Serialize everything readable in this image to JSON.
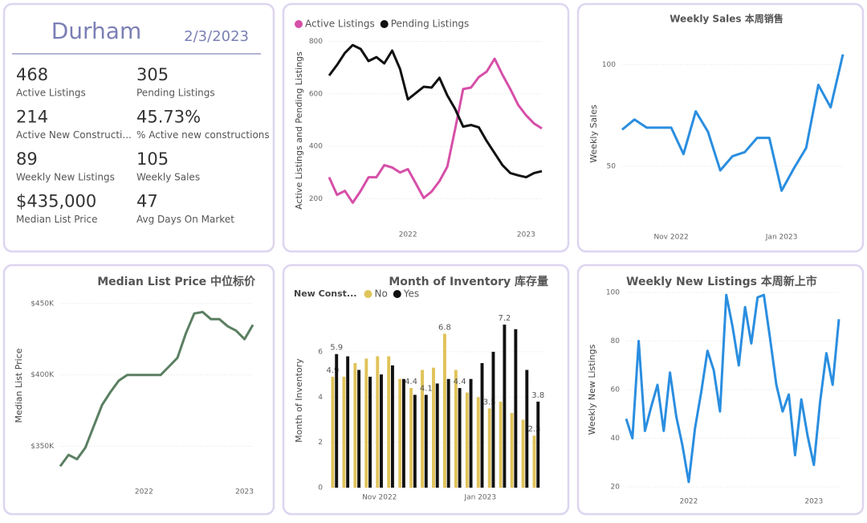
{
  "kpi": {
    "title": "Durham",
    "date": "2/3/2023",
    "items": [
      {
        "value": "468",
        "label": "Active Listings"
      },
      {
        "value": "305",
        "label": "Pending Listings"
      },
      {
        "value": "214",
        "label": "Active New Constructi..."
      },
      {
        "value": "45.73%",
        "label": "% Active new constructions"
      },
      {
        "value": "89",
        "label": "Weekly New Listings"
      },
      {
        "value": "105",
        "label": "Weekly Sales"
      },
      {
        "value": "$435,000",
        "label": "Median List Price"
      },
      {
        "value": "47",
        "label": "Avg Days On Market"
      }
    ]
  },
  "chart_data": [
    {
      "type": "line",
      "y_label": "Active Listings and Pending Listings",
      "legend": "top-left",
      "categories": [
        null,
        null,
        null,
        null,
        null,
        null,
        null,
        null,
        null,
        null,
        "2022",
        null,
        null,
        null,
        null,
        null,
        null,
        null,
        null,
        null,
        null,
        null,
        null,
        null,
        null,
        "2023",
        null,
        null
      ],
      "series": [
        {
          "name": "Active Listings",
          "color": "#d64fa8",
          "values": [
            282,
            215,
            230,
            185,
            230,
            282,
            282,
            328,
            319,
            300,
            313,
            258,
            203,
            227,
            267,
            322,
            466,
            618,
            624,
            664,
            685,
            734,
            673,
            618,
            557,
            518,
            487,
            468
          ]
        },
        {
          "name": "Pending Listings",
          "color": "#111111",
          "values": [
            670,
            710,
            756,
            786,
            771,
            725,
            740,
            716,
            765,
            695,
            579,
            603,
            627,
            624,
            661,
            594,
            542,
            475,
            481,
            472,
            420,
            374,
            328,
            298,
            289,
            282,
            298,
            305
          ]
        }
      ],
      "ylim": [
        100,
        820
      ],
      "yticks": [
        200,
        400,
        600,
        800
      ],
      "grid": true
    },
    {
      "type": "line",
      "title": "Weekly Sales 本周销售",
      "y_label": "Weekly Sales",
      "color": "#2a8ee0",
      "categories": [
        null,
        null,
        null,
        null,
        "Nov 2022",
        null,
        null,
        null,
        null,
        null,
        null,
        null,
        null,
        "Jan 2023",
        null,
        null,
        null,
        null,
        null
      ],
      "values": [
        68,
        73,
        69,
        69,
        69,
        56,
        77,
        67,
        48,
        55,
        57,
        64,
        64,
        38,
        49,
        59,
        90,
        79,
        105
      ],
      "ylim": [
        20,
        112
      ],
      "yticks": [
        50,
        100
      ],
      "grid": true
    },
    {
      "type": "line",
      "title": "Median List Price  中位标价",
      "y_label": "Median List Price",
      "color": "#5b7f62",
      "categories": [
        null,
        null,
        null,
        null,
        null,
        null,
        null,
        null,
        null,
        null,
        "2022",
        null,
        null,
        null,
        null,
        null,
        null,
        null,
        null,
        null,
        null,
        null,
        "2023",
        null
      ],
      "values": [
        336000,
        344000,
        341000,
        349000,
        364000,
        379000,
        388000,
        396000,
        400000,
        400000,
        400000,
        400000,
        400000,
        406000,
        412000,
        429000,
        443000,
        444000,
        439000,
        439000,
        434000,
        431000,
        425000,
        435000
      ],
      "ylim": [
        325000,
        460000
      ],
      "yticks": [
        {
          "value": 350000,
          "label": "$350K"
        },
        {
          "value": 400000,
          "label": "$400K"
        },
        {
          "value": 450000,
          "label": "$450K"
        }
      ],
      "grid": true
    },
    {
      "type": "bar",
      "title": "Month of Inventory 库存量",
      "legend_title": "New Const...",
      "y_label": "Month of Inventory",
      "legend": "top-left",
      "categories": [
        null,
        null,
        null,
        null,
        "Nov 2022",
        null,
        null,
        null,
        null,
        null,
        null,
        null,
        null,
        "Jan 2023",
        null,
        null,
        null,
        null,
        null
      ],
      "series": [
        {
          "name": "No",
          "color": "#e0c35a",
          "values": [
            4.9,
            4.9,
            5.5,
            5.7,
            5.8,
            5.8,
            4.8,
            4.4,
            5.2,
            5.3,
            6.8,
            5.2,
            4.2,
            4.0,
            3.5,
            3.8,
            3.3,
            3.0,
            2.3
          ],
          "value_labels": [
            "4.9",
            null,
            null,
            null,
            null,
            null,
            null,
            "4.4",
            null,
            null,
            "6.8",
            null,
            null,
            null,
            "3.5",
            null,
            null,
            null,
            "2.3"
          ]
        },
        {
          "name": "Yes",
          "color": "#111111",
          "values": [
            5.9,
            5.8,
            5.2,
            4.9,
            5.0,
            5.4,
            4.8,
            4.1,
            4.1,
            4.6,
            4.8,
            4.4,
            4.8,
            5.5,
            6.0,
            7.2,
            7.0,
            5.2,
            3.8
          ],
          "value_labels": [
            "5.9",
            null,
            null,
            null,
            null,
            null,
            null,
            null,
            "4.1",
            null,
            null,
            "4.4",
            null,
            null,
            null,
            "7.2",
            null,
            null,
            "3.8"
          ]
        }
      ],
      "ylim": [
        0,
        7.7
      ],
      "yticks": [
        0,
        2,
        4,
        6
      ],
      "grid": true
    },
    {
      "type": "line",
      "title": "Weekly New Listings  本周新上市",
      "y_label": "Weekly New Listings",
      "color": "#2a8ee0",
      "categories": [
        null,
        null,
        null,
        null,
        null,
        null,
        null,
        null,
        null,
        null,
        "2022",
        null,
        null,
        null,
        null,
        null,
        null,
        null,
        null,
        null,
        null,
        null,
        null,
        null,
        null,
        null,
        null,
        null,
        null,
        null,
        "2023",
        null,
        null,
        null,
        null
      ],
      "values": [
        48,
        40,
        80,
        43,
        53,
        62,
        43,
        67,
        49,
        37,
        22,
        44,
        59,
        76,
        68,
        51,
        99,
        86,
        70,
        94,
        79,
        98,
        99,
        81,
        62,
        51,
        58,
        33,
        56,
        41,
        29,
        55,
        75,
        62,
        89
      ],
      "ylim": [
        18,
        102
      ],
      "yticks": [
        20,
        40,
        60,
        80,
        100
      ],
      "grid": true
    }
  ]
}
